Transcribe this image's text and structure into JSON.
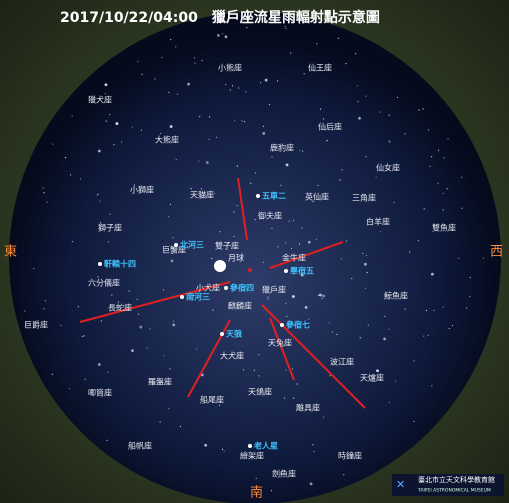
{
  "title": "2017/10/22/04:00　獵戶座流星雨輻射點示意圖",
  "directions": {
    "east": "東",
    "west": "西",
    "south": "南"
  },
  "constellations": [
    "小熊座",
    "仙王座",
    "獵犬座",
    "大熊座",
    "仙后座",
    "鹿豹座",
    "仙女座",
    "小獅座",
    "天貓座",
    "英仙座",
    "三角座",
    "白羊座",
    "雙魚座",
    "獅子座",
    "巨蟹座",
    "雙子座",
    "月球",
    "御夫座",
    "金牛座",
    "六分儀座",
    "小犬座",
    "長蛇座",
    "麒麟座",
    "獵戶座",
    "鯨魚座",
    "巨爵座",
    "天兔座",
    "大犬座",
    "波江座",
    "天爐座",
    "羅盤座",
    "天鴿座",
    "船尾座",
    "唧筒座",
    "雕具座",
    "船帆座",
    "繪架座",
    "時鐘座",
    "劍魚座"
  ],
  "stars": [
    "五車二",
    "北河三",
    "軒轅十四",
    "南河三",
    "參宿四",
    "畢宿五",
    "參宿七",
    "天狼",
    "老人星"
  ],
  "logo": {
    "name": "臺北市立天文科學教育館",
    "english": "TAIPEI ASTRONOMICAL MUSEUM"
  }
}
